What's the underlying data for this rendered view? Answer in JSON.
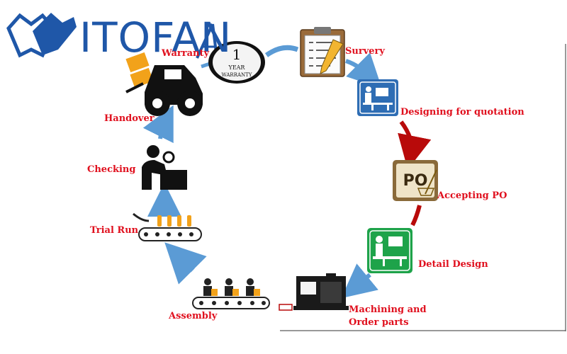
{
  "logo": {
    "brand": "ITOFAN"
  },
  "warranty_badge": {
    "number": "1",
    "line1": "YEAR",
    "line2": "WARRANTY"
  },
  "po_icon": {
    "text": "PO"
  },
  "steps": [
    {
      "id": "survery",
      "label": "Survery"
    },
    {
      "id": "designing",
      "label": "Designing for quotation"
    },
    {
      "id": "accepting",
      "label": "Accepting  PO"
    },
    {
      "id": "detail",
      "label": "Detail Design"
    },
    {
      "id": "machining",
      "label": "Machining and",
      "label2": "Order parts"
    },
    {
      "id": "assembly",
      "label": "Assembly"
    },
    {
      "id": "trial",
      "label": "Trial Run"
    },
    {
      "id": "checking",
      "label": "Checking"
    },
    {
      "id": "handover",
      "label": "Handover"
    },
    {
      "id": "warranty",
      "label": "Warranty"
    }
  ],
  "colors": {
    "label_red": "#e0101e",
    "logo_blue": "#1f57a8",
    "arrow_blue": "#5b9bd5",
    "arrow_red": "#b80a0a",
    "icon_blue": "#2e6db4",
    "icon_green": "#1ea34a"
  }
}
